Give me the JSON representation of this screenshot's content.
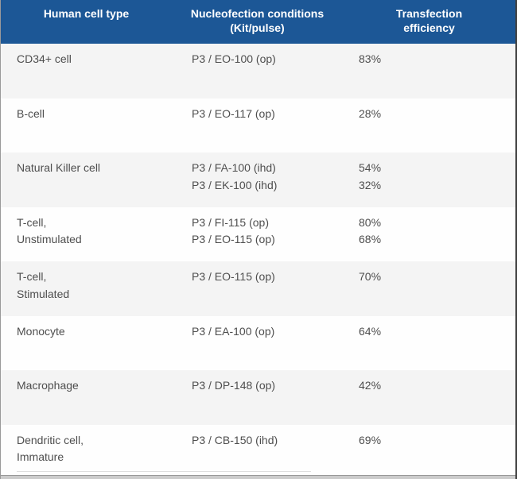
{
  "colors": {
    "header_bg": "#1c5796",
    "header_text": "#ffffff",
    "row_bg": "#fefefe",
    "row_alt_bg": "#f4f4f4",
    "body_text": "#4e4e4e"
  },
  "header": {
    "columns": [
      {
        "line1": "Human cell type",
        "line2": ""
      },
      {
        "line1": "Nucleofection conditions",
        "line2": "(Kit/pulse)"
      },
      {
        "line1": "Transfection",
        "line2": "efficiency"
      }
    ]
  },
  "table": {
    "rows": [
      {
        "cell_type": [
          "CD34+ cell"
        ],
        "conditions": [
          "P3 / EO-100 (op)"
        ],
        "efficiencies": [
          "83%"
        ]
      },
      {
        "cell_type": [
          "B-cell"
        ],
        "conditions": [
          "P3 / EO-117 (op)"
        ],
        "efficiencies": [
          "28%"
        ]
      },
      {
        "cell_type": [
          "Natural Killer cell"
        ],
        "conditions": [
          "P3 / FA-100 (ihd)",
          "P3 / EK-100 (ihd)"
        ],
        "efficiencies": [
          "54%",
          "32%"
        ]
      },
      {
        "cell_type": [
          "T-cell,",
          "Unstimulated"
        ],
        "conditions": [
          "P3 / FI-115 (op)",
          "P3 / EO-115 (op)"
        ],
        "efficiencies": [
          "80%",
          "68%"
        ]
      },
      {
        "cell_type": [
          "T-cell,",
          "Stimulated"
        ],
        "conditions": [
          "P3 / EO-115 (op)"
        ],
        "efficiencies": [
          "70%"
        ]
      },
      {
        "cell_type": [
          "Monocyte"
        ],
        "conditions": [
          "P3 / EA-100 (op)"
        ],
        "efficiencies": [
          "64%"
        ]
      },
      {
        "cell_type": [
          "Macrophage"
        ],
        "conditions": [
          "P3 / DP-148 (op)"
        ],
        "efficiencies": [
          "42%"
        ]
      },
      {
        "cell_type": [
          "Dendritic cell,",
          "Immature"
        ],
        "conditions": [
          "P3 / CB-150 (ihd)"
        ],
        "efficiencies": [
          "69%"
        ]
      }
    ]
  },
  "chart_data": {
    "type": "table",
    "title": "",
    "columns": [
      "Human cell type",
      "Nucleofection conditions (Kit/pulse)",
      "Transfection efficiency"
    ],
    "rows": [
      [
        "CD34+ cell",
        "P3 / EO-100 (op)",
        "83%"
      ],
      [
        "B-cell",
        "P3 / EO-117 (op)",
        "28%"
      ],
      [
        "Natural Killer cell",
        "P3 / FA-100 (ihd); P3 / EK-100 (ihd)",
        "54%; 32%"
      ],
      [
        "T-cell, Unstimulated",
        "P3 / FI-115 (op); P3 / EO-115 (op)",
        "80%; 68%"
      ],
      [
        "T-cell, Stimulated",
        "P3 / EO-115 (op)",
        "70%"
      ],
      [
        "Monocyte",
        "P3 / EA-100 (op)",
        "64%"
      ],
      [
        "Macrophage",
        "P3 / DP-148 (op)",
        "42%"
      ],
      [
        "Dendritic cell, Immature",
        "P3 / CB-150 (ihd)",
        "69%"
      ]
    ]
  }
}
